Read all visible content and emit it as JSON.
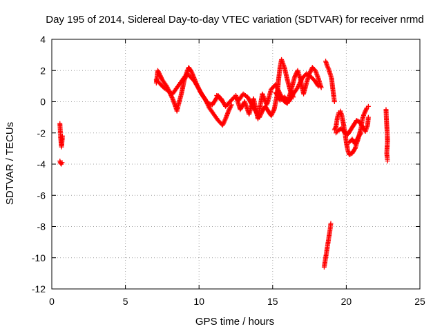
{
  "chart_data": {
    "type": "scatter",
    "title": "Day 195 of 2014, Sidereal Day-to-day VTEC variation (SDTVAR) for receiver nrmd",
    "xlabel": "GPS time / hours",
    "ylabel": "SDTVAR / TECUs",
    "xlim": [
      0,
      25
    ],
    "ylim": [
      -12,
      4
    ],
    "xticks": [
      0,
      5,
      10,
      15,
      20,
      25
    ],
    "yticks": [
      -12,
      -10,
      -8,
      -6,
      -4,
      -2,
      0,
      2,
      4
    ],
    "grid": true,
    "marker": "+",
    "color": "#ff0000",
    "series": [
      {
        "name": "SDTVAR",
        "segments": [
          [
            [
              0.55,
              -1.4
            ],
            [
              0.58,
              -1.9
            ],
            [
              0.6,
              -2.3
            ],
            [
              0.63,
              -2.6
            ],
            [
              0.66,
              -2.9
            ],
            [
              0.7,
              -2.5
            ],
            [
              0.72,
              -2.2
            ]
          ],
          [
            [
              0.55,
              -3.8
            ],
            [
              0.6,
              -3.95
            ],
            [
              0.65,
              -4.0
            ],
            [
              0.7,
              -3.9
            ]
          ],
          [
            [
              7.1,
              1.2
            ],
            [
              7.2,
              2.0
            ],
            [
              7.3,
              1.8
            ],
            [
              7.5,
              1.4
            ],
            [
              7.8,
              1.0
            ],
            [
              8.0,
              0.6
            ],
            [
              8.2,
              0.2
            ],
            [
              8.4,
              -0.3
            ],
            [
              8.5,
              -0.6
            ],
            [
              8.6,
              -0.2
            ],
            [
              8.8,
              0.5
            ],
            [
              9.0,
              1.4
            ],
            [
              9.2,
              1.8
            ],
            [
              9.4,
              1.6
            ],
            [
              9.7,
              1.3
            ],
            [
              10.0,
              0.8
            ],
            [
              10.3,
              0.3
            ],
            [
              10.6,
              -0.1
            ],
            [
              10.9,
              -0.2
            ],
            [
              11.1,
              0.1
            ],
            [
              11.3,
              0.4
            ],
            [
              11.5,
              0.1
            ]
          ],
          [
            [
              7.1,
              1.4
            ],
            [
              7.3,
              1.2
            ],
            [
              7.6,
              0.9
            ],
            [
              7.9,
              0.7
            ],
            [
              8.2,
              0.5
            ],
            [
              8.5,
              0.9
            ],
            [
              8.8,
              1.3
            ],
            [
              9.1,
              1.7
            ],
            [
              9.3,
              2.2
            ],
            [
              9.5,
              1.9
            ],
            [
              9.8,
              1.2
            ],
            [
              10.1,
              0.6
            ],
            [
              10.4,
              0.2
            ],
            [
              10.7,
              -0.4
            ],
            [
              11.0,
              -0.8
            ],
            [
              11.3,
              -1.2
            ],
            [
              11.6,
              -1.5
            ],
            [
              11.8,
              -1.1
            ],
            [
              12.0,
              -0.6
            ],
            [
              12.2,
              -0.2
            ]
          ],
          [
            [
              11.2,
              0.4
            ],
            [
              11.5,
              0.2
            ],
            [
              11.8,
              -0.3
            ],
            [
              12.1,
              0.0
            ],
            [
              12.4,
              0.3
            ],
            [
              12.7,
              0.1
            ],
            [
              13.0,
              0.5
            ],
            [
              13.3,
              0.3
            ],
            [
              13.6,
              -0.2
            ],
            [
              13.9,
              -0.7
            ],
            [
              14.1,
              -1.0
            ],
            [
              14.3,
              -0.6
            ],
            [
              14.5,
              -0.3
            ],
            [
              14.7,
              -0.6
            ],
            [
              14.9,
              -0.9
            ],
            [
              15.1,
              -0.5
            ],
            [
              15.3,
              0.4
            ],
            [
              15.4,
              1.4
            ],
            [
              15.5,
              2.2
            ],
            [
              15.6,
              2.7
            ],
            [
              15.8,
              2.2
            ],
            [
              16.0,
              1.4
            ],
            [
              16.2,
              0.7
            ],
            [
              16.4,
              0.3
            ]
          ],
          [
            [
              12.5,
              0.4
            ],
            [
              12.8,
              -0.5
            ],
            [
              13.1,
              0.0
            ],
            [
              13.4,
              -0.8
            ],
            [
              13.7,
              0.2
            ],
            [
              14.0,
              -1.1
            ],
            [
              14.3,
              0.5
            ],
            [
              14.6,
              -0.2
            ],
            [
              14.9,
              0.8
            ],
            [
              15.2,
              1.1
            ],
            [
              15.5,
              0.5
            ],
            [
              15.8,
              0.0
            ],
            [
              16.0,
              -0.1
            ],
            [
              16.3,
              0.9
            ],
            [
              16.5,
              1.6
            ],
            [
              16.7,
              2.0
            ],
            [
              16.9,
              1.4
            ],
            [
              17.1,
              0.5
            ],
            [
              17.3,
              1.2
            ],
            [
              17.5,
              1.8
            ],
            [
              17.7,
              2.2
            ],
            [
              17.9,
              2.0
            ],
            [
              18.1,
              1.5
            ],
            [
              18.3,
              0.9
            ]
          ],
          [
            [
              15.2,
              0.6
            ],
            [
              15.5,
              0.1
            ],
            [
              15.8,
              0.3
            ],
            [
              16.1,
              0.0
            ],
            [
              16.4,
              0.5
            ],
            [
              16.7,
              0.9
            ],
            [
              17.0,
              1.5
            ],
            [
              17.3,
              1.8
            ],
            [
              17.6,
              1.6
            ],
            [
              17.9,
              1.3
            ],
            [
              18.1,
              1.0
            ]
          ],
          [
            [
              18.5,
              -10.6
            ],
            [
              18.6,
              -10.0
            ],
            [
              18.7,
              -9.4
            ],
            [
              18.8,
              -8.8
            ],
            [
              18.9,
              -8.2
            ],
            [
              18.95,
              -7.8
            ]
          ],
          [
            [
              18.6,
              2.6
            ],
            [
              18.7,
              2.3
            ],
            [
              18.8,
              2.1
            ],
            [
              18.9,
              1.8
            ],
            [
              19.0,
              1.5
            ],
            [
              19.1,
              0.7
            ],
            [
              19.2,
              0.0
            ]
          ],
          [
            [
              19.2,
              -1.8
            ],
            [
              19.3,
              -1.6
            ],
            [
              19.4,
              -1.0
            ],
            [
              19.5,
              -0.7
            ],
            [
              19.6,
              -0.6
            ],
            [
              19.7,
              -0.9
            ],
            [
              19.8,
              -1.4
            ],
            [
              19.9,
              -1.9
            ],
            [
              20.0,
              -2.6
            ],
            [
              20.1,
              -3.1
            ],
            [
              20.2,
              -3.4
            ],
            [
              20.4,
              -3.3
            ],
            [
              20.6,
              -3.0
            ],
            [
              20.8,
              -2.4
            ],
            [
              21.0,
              -1.7
            ],
            [
              21.1,
              -1.1
            ],
            [
              21.2,
              -0.8
            ],
            [
              21.3,
              -0.6
            ],
            [
              21.4,
              -0.4
            ],
            [
              21.5,
              -0.3
            ]
          ],
          [
            [
              19.3,
              -2.0
            ],
            [
              19.5,
              -1.8
            ],
            [
              19.7,
              -1.7
            ],
            [
              19.9,
              -2.0
            ],
            [
              20.1,
              -2.1
            ],
            [
              20.3,
              -1.8
            ],
            [
              20.5,
              -1.5
            ],
            [
              20.7,
              -1.2
            ],
            [
              20.9,
              -1.3
            ],
            [
              21.1,
              -1.6
            ],
            [
              21.3,
              -1.9
            ],
            [
              21.45,
              -1.5
            ],
            [
              21.5,
              -1.0
            ]
          ],
          [
            [
              20.2,
              -2.6
            ],
            [
              20.4,
              -2.4
            ],
            [
              20.6,
              -2.7
            ],
            [
              20.8,
              -2.3
            ],
            [
              21.0,
              -2.0
            ]
          ],
          [
            [
              22.7,
              -0.5
            ],
            [
              22.72,
              -1.0
            ],
            [
              22.75,
              -1.5
            ],
            [
              22.78,
              -2.0
            ],
            [
              22.8,
              -2.5
            ],
            [
              22.75,
              -3.3
            ],
            [
              22.78,
              -3.6
            ],
            [
              22.8,
              -3.8
            ]
          ]
        ]
      }
    ]
  }
}
